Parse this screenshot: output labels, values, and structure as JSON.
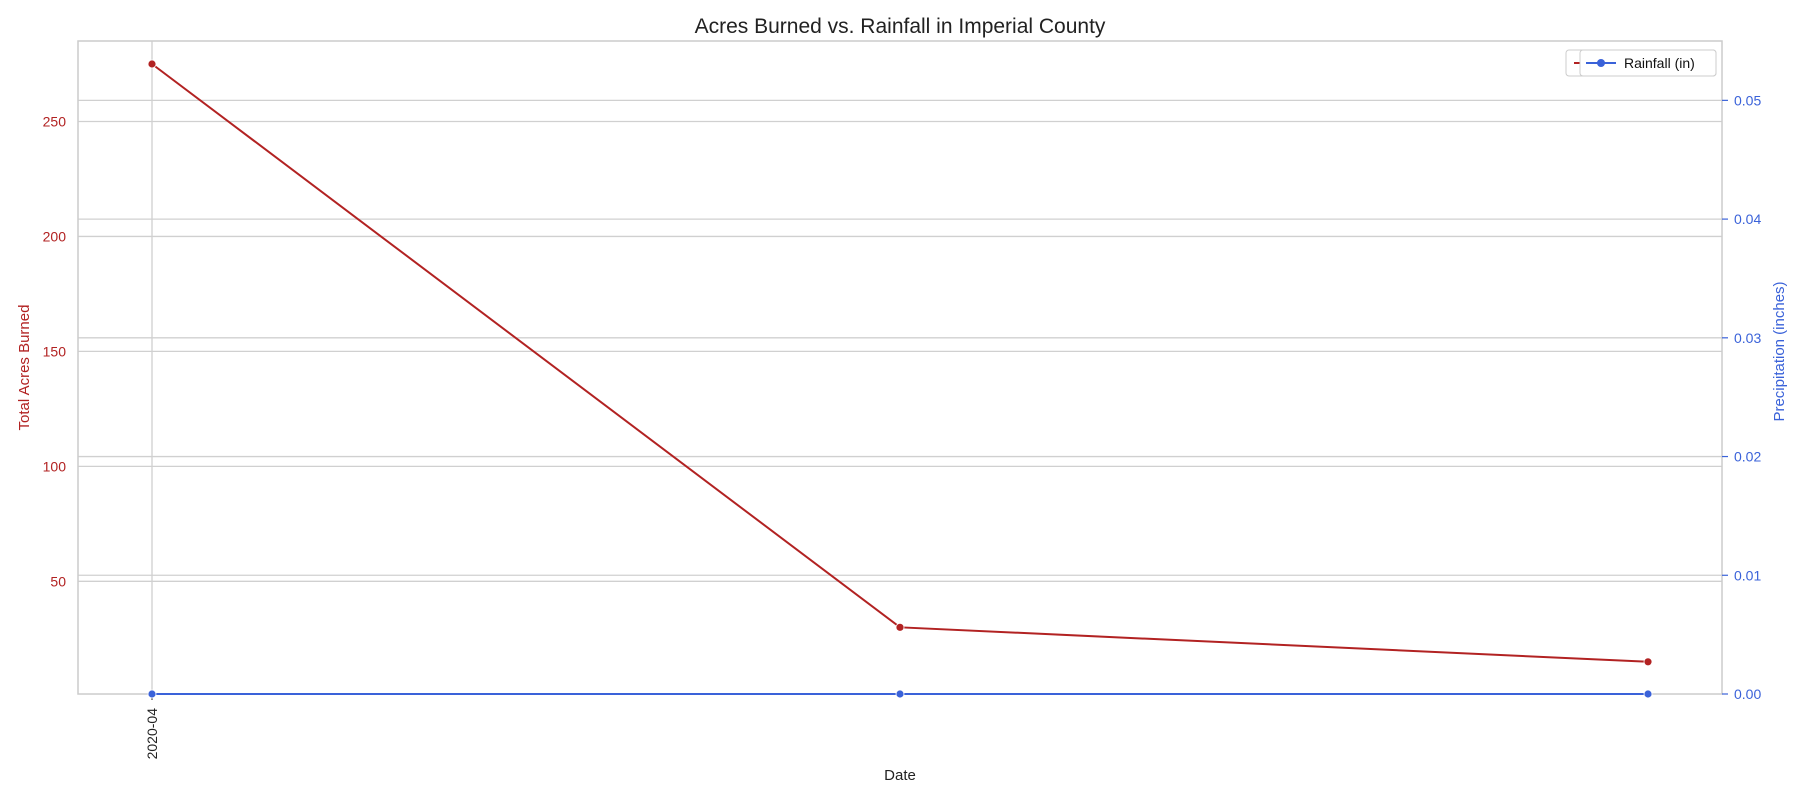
{
  "chart_data": {
    "type": "line",
    "title": "Acres Burned vs. Rainfall in Imperial County",
    "xlabel": "Date",
    "x_tick_labels": [
      "2020-04"
    ],
    "x": [
      "2020-04",
      "",
      ""
    ],
    "y_left": {
      "label": "Total Acres Burned",
      "ticks": [
        50,
        100,
        150,
        200,
        250
      ],
      "lim": [
        1,
        285
      ],
      "color": "#b22222"
    },
    "y_right": {
      "label": "Precipitation (inches)",
      "ticks": [
        "0.00",
        "0.01",
        "0.02",
        "0.03",
        "0.04",
        "0.05"
      ],
      "lim": [
        0,
        0.055
      ],
      "color": "#3a62d9"
    },
    "series": [
      {
        "name": "Acres Burned",
        "axis": "left",
        "color": "#b22222",
        "values": [
          275,
          30,
          15
        ]
      },
      {
        "name": "Rainfall (in)",
        "axis": "right",
        "color": "#3a62d9",
        "values": [
          0,
          0,
          0
        ]
      }
    ],
    "legend": {
      "position": "top-right",
      "entries": [
        "Acres Burned",
        "Rainfall (in)"
      ]
    },
    "grid": true
  }
}
